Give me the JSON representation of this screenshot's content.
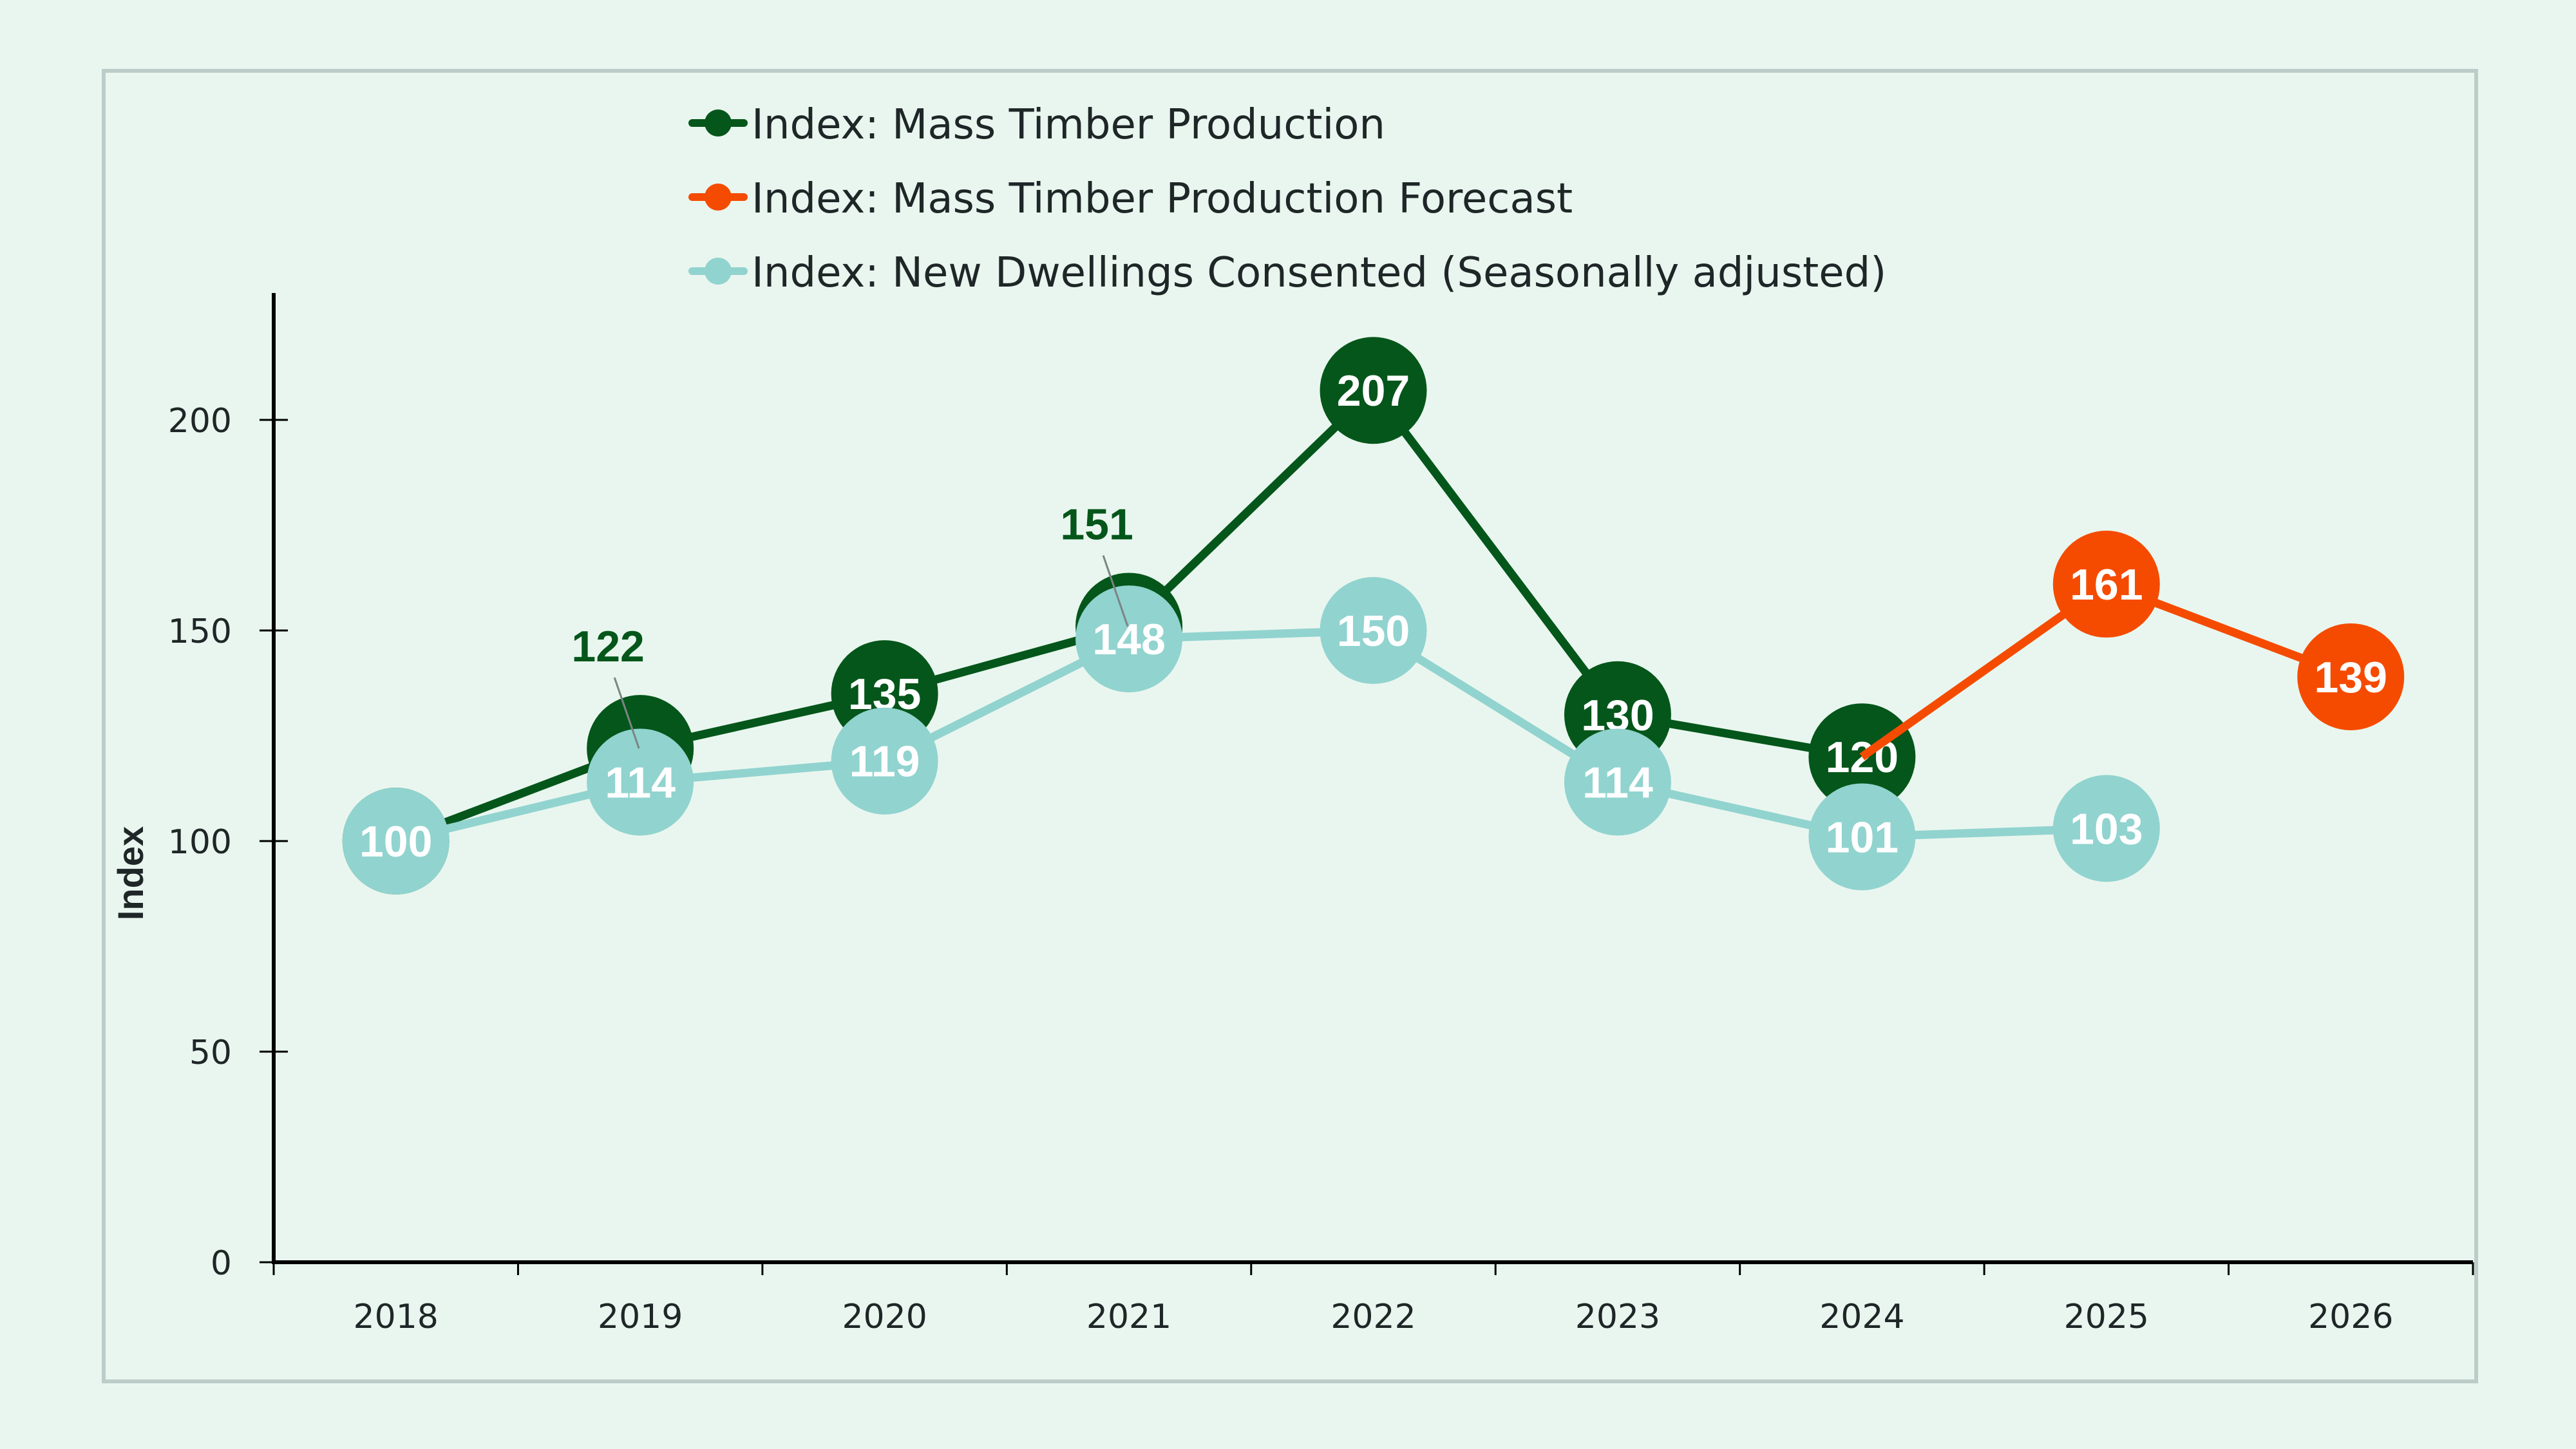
{
  "chart_data": {
    "type": "line",
    "title": "",
    "xlabel": "",
    "ylabel": "Index",
    "ylim": [
      0,
      230
    ],
    "yticks": [
      0,
      50,
      100,
      150,
      200
    ],
    "categories": [
      "2018",
      "2019",
      "2020",
      "2021",
      "2022",
      "2023",
      "2024",
      "2025",
      "2026"
    ],
    "legend_position": "top",
    "grid": false,
    "series": [
      {
        "key": "mass_timber",
        "name": "Index: Mass Timber Production",
        "color": "#04561A",
        "values": [
          100,
          122,
          135,
          151,
          207,
          130,
          120,
          null,
          null
        ],
        "labels": [
          null,
          "122",
          "135",
          "151",
          "207",
          "130",
          "120",
          null,
          null
        ],
        "external_labels": [
          "122",
          "151"
        ]
      },
      {
        "key": "forecast",
        "name": "Index: Mass Timber Production Forecast",
        "color": "#F54B00",
        "values": [
          null,
          null,
          null,
          null,
          null,
          null,
          120,
          161,
          139
        ],
        "labels": [
          null,
          null,
          null,
          null,
          null,
          null,
          null,
          "161",
          "139"
        ]
      },
      {
        "key": "dwellings",
        "name": "Index: New Dwellings Consented (Seasonally adjusted)",
        "color": "#91D3CF",
        "values": [
          100,
          114,
          119,
          148,
          150,
          114,
          101,
          103,
          null
        ],
        "labels": [
          "100",
          "114",
          "119",
          "148",
          "150",
          "114",
          "101",
          "103",
          null
        ]
      }
    ]
  },
  "colors": {
    "background": "#E9F6EF",
    "frame_border": "#BCCDC9",
    "axis": "#000000",
    "text": "#1F2627",
    "leader_line": "#7A8585"
  }
}
